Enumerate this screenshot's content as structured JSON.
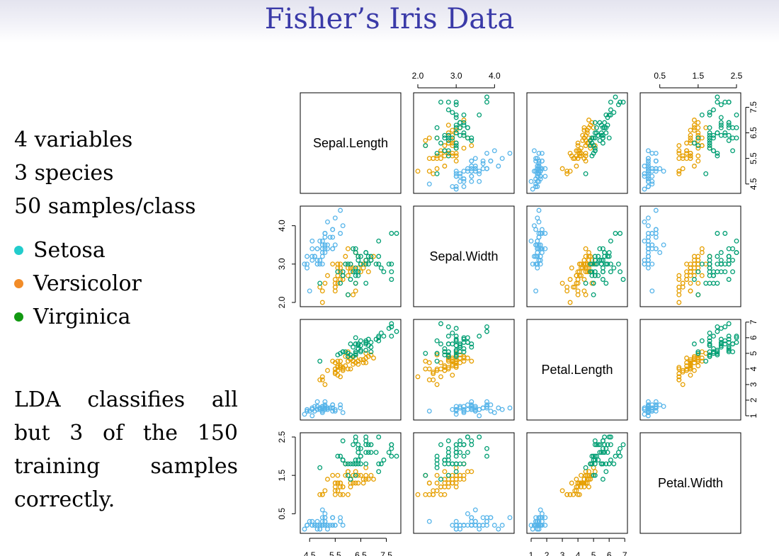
{
  "title": "Fisher’s Iris Data",
  "facts": [
    "4 variables",
    "3 species",
    "50 samples/class"
  ],
  "legend": [
    {
      "label": "Setosa",
      "color": "#22cccc"
    },
    {
      "label": "Versicolor",
      "color": "#f28c28"
    },
    {
      "label": "Virginica",
      "color": "#129912"
    }
  ],
  "lda_text": "LDA classifies all but 3 of the 150 training samples correctly.",
  "chart_data": {
    "type": "scatter",
    "title": "",
    "variables": [
      "Sepal.Length",
      "Sepal.Width",
      "Petal.Length",
      "Petal.Width"
    ],
    "ranges": [
      [
        4.3,
        7.9
      ],
      [
        2.0,
        4.4
      ],
      [
        1.0,
        6.9
      ],
      [
        0.1,
        2.5
      ]
    ],
    "ticks": [
      [
        "4.5",
        "5.5",
        "6.5",
        "7.5"
      ],
      [
        "2.0",
        "3.0",
        "4.0"
      ],
      [
        "1",
        "2",
        "3",
        "4",
        "5",
        "6",
        "7"
      ],
      [
        "0.5",
        "1.5",
        "2.5"
      ]
    ],
    "series_colors": [
      "#56b4e9",
      "#e69f00",
      "#009e73"
    ],
    "series": [
      {
        "values": [
          [
            5.1,
            3.5,
            1.4,
            0.2
          ],
          [
            4.9,
            3.0,
            1.4,
            0.2
          ],
          [
            4.7,
            3.2,
            1.3,
            0.2
          ],
          [
            4.6,
            3.1,
            1.5,
            0.2
          ],
          [
            5.0,
            3.6,
            1.4,
            0.2
          ],
          [
            5.4,
            3.9,
            1.7,
            0.4
          ],
          [
            4.6,
            3.4,
            1.4,
            0.3
          ],
          [
            5.0,
            3.4,
            1.5,
            0.2
          ],
          [
            4.4,
            2.9,
            1.4,
            0.2
          ],
          [
            4.9,
            3.1,
            1.5,
            0.1
          ],
          [
            5.4,
            3.7,
            1.5,
            0.2
          ],
          [
            4.8,
            3.4,
            1.6,
            0.2
          ],
          [
            4.8,
            3.0,
            1.4,
            0.1
          ],
          [
            4.3,
            3.0,
            1.1,
            0.1
          ],
          [
            5.8,
            4.0,
            1.2,
            0.2
          ],
          [
            5.7,
            4.4,
            1.5,
            0.4
          ],
          [
            5.4,
            3.9,
            1.3,
            0.4
          ],
          [
            5.1,
            3.5,
            1.4,
            0.3
          ],
          [
            5.7,
            3.8,
            1.7,
            0.3
          ],
          [
            5.1,
            3.8,
            1.5,
            0.3
          ],
          [
            5.4,
            3.4,
            1.7,
            0.2
          ],
          [
            5.1,
            3.7,
            1.5,
            0.4
          ],
          [
            4.6,
            3.6,
            1.0,
            0.2
          ],
          [
            5.1,
            3.3,
            1.7,
            0.5
          ],
          [
            4.8,
            3.4,
            1.9,
            0.2
          ],
          [
            5.0,
            3.0,
            1.6,
            0.2
          ],
          [
            5.0,
            3.4,
            1.6,
            0.4
          ],
          [
            5.2,
            3.5,
            1.5,
            0.2
          ],
          [
            5.2,
            3.4,
            1.4,
            0.2
          ],
          [
            4.7,
            3.2,
            1.6,
            0.2
          ],
          [
            4.8,
            3.1,
            1.6,
            0.2
          ],
          [
            5.4,
            3.4,
            1.5,
            0.4
          ],
          [
            5.2,
            4.1,
            1.5,
            0.1
          ],
          [
            5.5,
            4.2,
            1.4,
            0.2
          ],
          [
            4.9,
            3.1,
            1.5,
            0.2
          ],
          [
            5.0,
            3.2,
            1.2,
            0.2
          ],
          [
            5.5,
            3.5,
            1.3,
            0.2
          ],
          [
            4.9,
            3.6,
            1.4,
            0.1
          ],
          [
            4.4,
            3.0,
            1.3,
            0.2
          ],
          [
            5.1,
            3.4,
            1.5,
            0.2
          ],
          [
            5.0,
            3.5,
            1.3,
            0.3
          ],
          [
            4.5,
            2.3,
            1.3,
            0.3
          ],
          [
            4.4,
            3.2,
            1.3,
            0.2
          ],
          [
            5.0,
            3.5,
            1.6,
            0.6
          ],
          [
            5.1,
            3.8,
            1.9,
            0.4
          ],
          [
            4.8,
            3.0,
            1.4,
            0.3
          ],
          [
            5.1,
            3.8,
            1.6,
            0.2
          ],
          [
            4.6,
            3.2,
            1.4,
            0.2
          ],
          [
            5.3,
            3.7,
            1.5,
            0.2
          ],
          [
            5.0,
            3.3,
            1.4,
            0.2
          ]
        ]
      },
      {
        "values": [
          [
            7.0,
            3.2,
            4.7,
            1.4
          ],
          [
            6.4,
            3.2,
            4.5,
            1.5
          ],
          [
            6.9,
            3.1,
            4.9,
            1.5
          ],
          [
            5.5,
            2.3,
            4.0,
            1.3
          ],
          [
            6.5,
            2.8,
            4.6,
            1.5
          ],
          [
            5.7,
            2.8,
            4.5,
            1.3
          ],
          [
            6.3,
            3.3,
            4.7,
            1.6
          ],
          [
            4.9,
            2.4,
            3.3,
            1.0
          ],
          [
            6.6,
            2.9,
            4.6,
            1.3
          ],
          [
            5.2,
            2.7,
            3.9,
            1.4
          ],
          [
            5.0,
            2.0,
            3.5,
            1.0
          ],
          [
            5.9,
            3.0,
            4.2,
            1.5
          ],
          [
            6.0,
            2.2,
            4.0,
            1.0
          ],
          [
            6.1,
            2.9,
            4.7,
            1.4
          ],
          [
            5.6,
            2.9,
            3.6,
            1.3
          ],
          [
            6.7,
            3.1,
            4.4,
            1.4
          ],
          [
            5.6,
            3.0,
            4.5,
            1.5
          ],
          [
            5.8,
            2.7,
            4.1,
            1.0
          ],
          [
            6.2,
            2.2,
            4.5,
            1.5
          ],
          [
            5.6,
            2.5,
            3.9,
            1.1
          ],
          [
            5.9,
            3.2,
            4.8,
            1.8
          ],
          [
            6.1,
            2.8,
            4.0,
            1.3
          ],
          [
            6.3,
            2.5,
            4.9,
            1.5
          ],
          [
            6.1,
            2.8,
            4.7,
            1.2
          ],
          [
            6.4,
            2.9,
            4.3,
            1.3
          ],
          [
            6.6,
            3.0,
            4.4,
            1.4
          ],
          [
            6.8,
            2.8,
            4.8,
            1.4
          ],
          [
            6.7,
            3.0,
            5.0,
            1.7
          ],
          [
            6.0,
            2.9,
            4.5,
            1.5
          ],
          [
            5.7,
            2.6,
            3.5,
            1.0
          ],
          [
            5.5,
            2.4,
            3.8,
            1.1
          ],
          [
            5.5,
            2.4,
            3.7,
            1.0
          ],
          [
            5.8,
            2.7,
            3.9,
            1.2
          ],
          [
            6.0,
            2.7,
            5.1,
            1.6
          ],
          [
            5.4,
            3.0,
            4.5,
            1.5
          ],
          [
            6.0,
            3.4,
            4.5,
            1.6
          ],
          [
            6.7,
            3.1,
            4.7,
            1.5
          ],
          [
            6.3,
            2.3,
            4.4,
            1.3
          ],
          [
            5.6,
            3.0,
            4.1,
            1.3
          ],
          [
            5.5,
            2.5,
            4.0,
            1.3
          ],
          [
            5.5,
            2.6,
            4.4,
            1.2
          ],
          [
            6.1,
            3.0,
            4.6,
            1.4
          ],
          [
            5.8,
            2.6,
            4.0,
            1.2
          ],
          [
            5.0,
            2.3,
            3.3,
            1.0
          ],
          [
            5.6,
            2.7,
            4.2,
            1.3
          ],
          [
            5.7,
            3.0,
            4.2,
            1.2
          ],
          [
            5.7,
            2.9,
            4.2,
            1.3
          ],
          [
            6.2,
            2.9,
            4.3,
            1.3
          ],
          [
            5.1,
            2.5,
            3.0,
            1.1
          ],
          [
            5.7,
            2.8,
            4.1,
            1.3
          ]
        ]
      },
      {
        "values": [
          [
            6.3,
            3.3,
            6.0,
            2.5
          ],
          [
            5.8,
            2.7,
            5.1,
            1.9
          ],
          [
            7.1,
            3.0,
            5.9,
            2.1
          ],
          [
            6.3,
            2.9,
            5.6,
            1.8
          ],
          [
            6.5,
            3.0,
            5.8,
            2.2
          ],
          [
            7.6,
            3.0,
            6.6,
            2.1
          ],
          [
            4.9,
            2.5,
            4.5,
            1.7
          ],
          [
            7.3,
            2.9,
            6.3,
            1.8
          ],
          [
            6.7,
            2.5,
            5.8,
            1.8
          ],
          [
            7.2,
            3.6,
            6.1,
            2.5
          ],
          [
            6.5,
            3.2,
            5.1,
            2.0
          ],
          [
            6.4,
            2.7,
            5.3,
            1.9
          ],
          [
            6.8,
            3.0,
            5.5,
            2.1
          ],
          [
            5.7,
            2.5,
            5.0,
            2.0
          ],
          [
            5.8,
            2.8,
            5.1,
            2.4
          ],
          [
            6.4,
            3.2,
            5.3,
            2.3
          ],
          [
            6.5,
            3.0,
            5.5,
            1.8
          ],
          [
            7.7,
            3.8,
            6.7,
            2.2
          ],
          [
            7.7,
            2.6,
            6.9,
            2.3
          ],
          [
            6.0,
            2.2,
            5.0,
            1.5
          ],
          [
            6.9,
            3.2,
            5.7,
            2.3
          ],
          [
            5.6,
            2.8,
            4.9,
            2.0
          ],
          [
            7.7,
            2.8,
            6.7,
            2.0
          ],
          [
            6.3,
            2.7,
            4.9,
            1.8
          ],
          [
            6.7,
            3.3,
            5.7,
            2.1
          ],
          [
            7.2,
            3.2,
            6.0,
            1.8
          ],
          [
            6.2,
            2.8,
            4.8,
            1.8
          ],
          [
            6.1,
            3.0,
            4.9,
            1.8
          ],
          [
            6.4,
            2.8,
            5.6,
            2.1
          ],
          [
            7.2,
            3.0,
            5.8,
            1.6
          ],
          [
            7.4,
            2.8,
            6.1,
            1.9
          ],
          [
            7.9,
            3.8,
            6.4,
            2.0
          ],
          [
            6.4,
            2.8,
            5.6,
            2.2
          ],
          [
            6.3,
            2.8,
            5.1,
            1.5
          ],
          [
            6.1,
            2.6,
            5.6,
            1.4
          ],
          [
            7.7,
            3.0,
            6.1,
            2.3
          ],
          [
            6.3,
            3.4,
            5.6,
            2.4
          ],
          [
            6.4,
            3.1,
            5.5,
            1.8
          ],
          [
            6.0,
            3.0,
            4.8,
            1.8
          ],
          [
            6.9,
            3.1,
            5.4,
            2.1
          ],
          [
            6.7,
            3.1,
            5.6,
            2.4
          ],
          [
            6.9,
            3.1,
            5.1,
            2.3
          ],
          [
            5.8,
            2.7,
            5.1,
            1.9
          ],
          [
            6.8,
            3.2,
            5.9,
            2.3
          ],
          [
            6.7,
            3.3,
            5.7,
            2.5
          ],
          [
            6.7,
            3.0,
            5.2,
            2.3
          ],
          [
            6.3,
            2.5,
            5.0,
            1.9
          ],
          [
            6.5,
            3.0,
            5.2,
            2.0
          ],
          [
            6.2,
            3.4,
            5.4,
            2.3
          ],
          [
            5.9,
            3.0,
            5.1,
            1.8
          ]
        ]
      }
    ]
  }
}
